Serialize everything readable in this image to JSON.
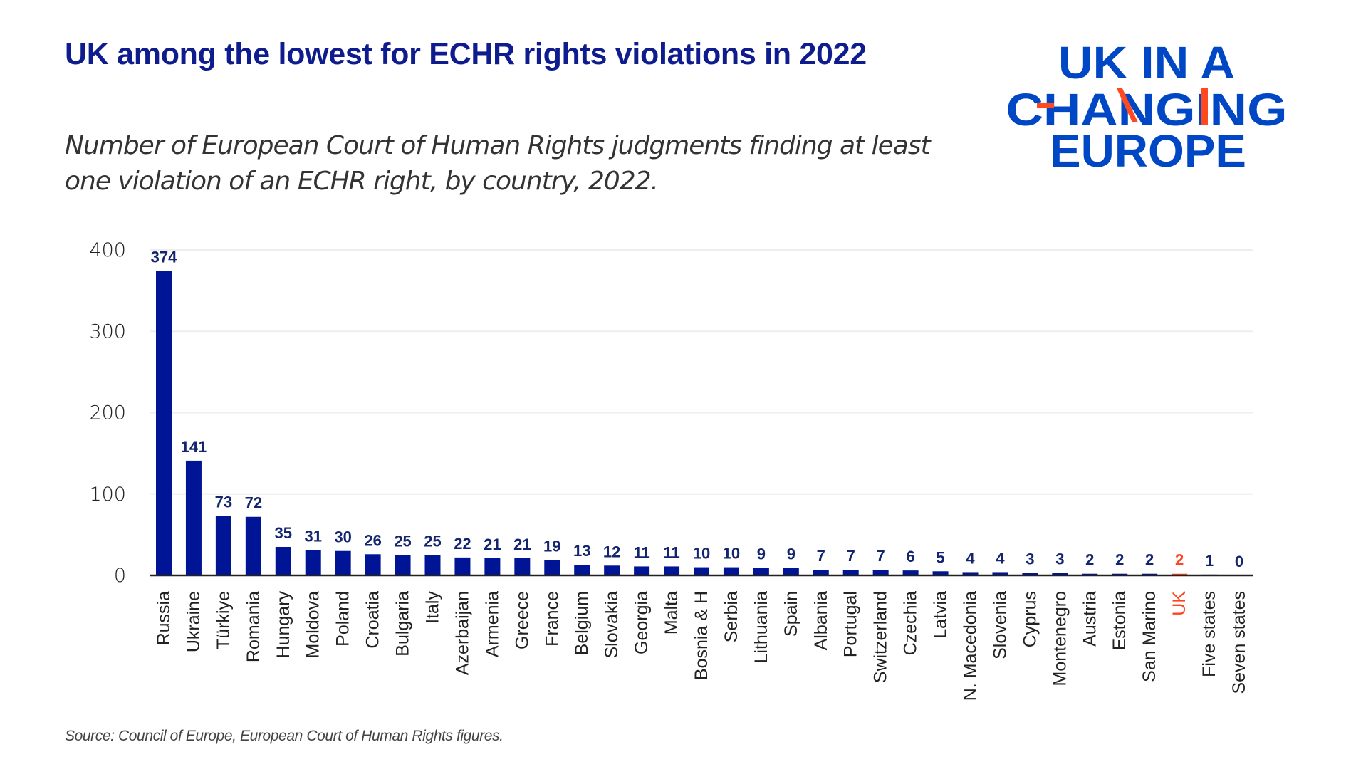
{
  "title": "UK among the lowest for ECHR rights violations in 2022",
  "subtitle": "Number of European Court of Human Rights judgments finding at least one violation of an ECHR right, by country, 2022.",
  "source": "Source: Council of Europe, European Court of Human Rights figures.",
  "logo": {
    "line1": "UK IN A",
    "line2": "CHANGING",
    "line3": "EUROPE",
    "blue": "#0047c5",
    "orange": "#ff4a1f"
  },
  "colors": {
    "bar": "#001496",
    "highlight": "#ff4422",
    "value_label": "#13256e",
    "grid": "#eeeeee"
  },
  "chart_data": {
    "type": "bar",
    "title": "UK among the lowest for ECHR rights violations in 2022",
    "xlabel": "",
    "ylabel": "",
    "ylim": [
      0,
      400
    ],
    "yticks": [
      0,
      100,
      200,
      300,
      400
    ],
    "grid": true,
    "highlight_category": "UK",
    "categories": [
      "Russia",
      "Ukraine",
      "Türkiye",
      "Romania",
      "Hungary",
      "Moldova",
      "Poland",
      "Croatia",
      "Bulgaria",
      "Italy",
      "Azerbaijan",
      "Armenia",
      "Greece",
      "France",
      "Belgium",
      "Slovakia",
      "Georgia",
      "Malta",
      "Bosnia & H",
      "Serbia",
      "Lithuania",
      "Spain",
      "Albania",
      "Portugal",
      "Switzerland",
      "Czechia",
      "Latvia",
      "N. Macedonia",
      "Slovenia",
      "Cyprus",
      "Montenegro",
      "Austria",
      "Estonia",
      "San Marino",
      "UK",
      "Five states",
      "Seven states"
    ],
    "values": [
      374,
      141,
      73,
      72,
      35,
      31,
      30,
      26,
      25,
      25,
      22,
      21,
      21,
      19,
      13,
      12,
      11,
      11,
      10,
      10,
      9,
      9,
      7,
      7,
      7,
      6,
      5,
      4,
      4,
      3,
      3,
      2,
      2,
      2,
      2,
      1,
      0
    ]
  }
}
